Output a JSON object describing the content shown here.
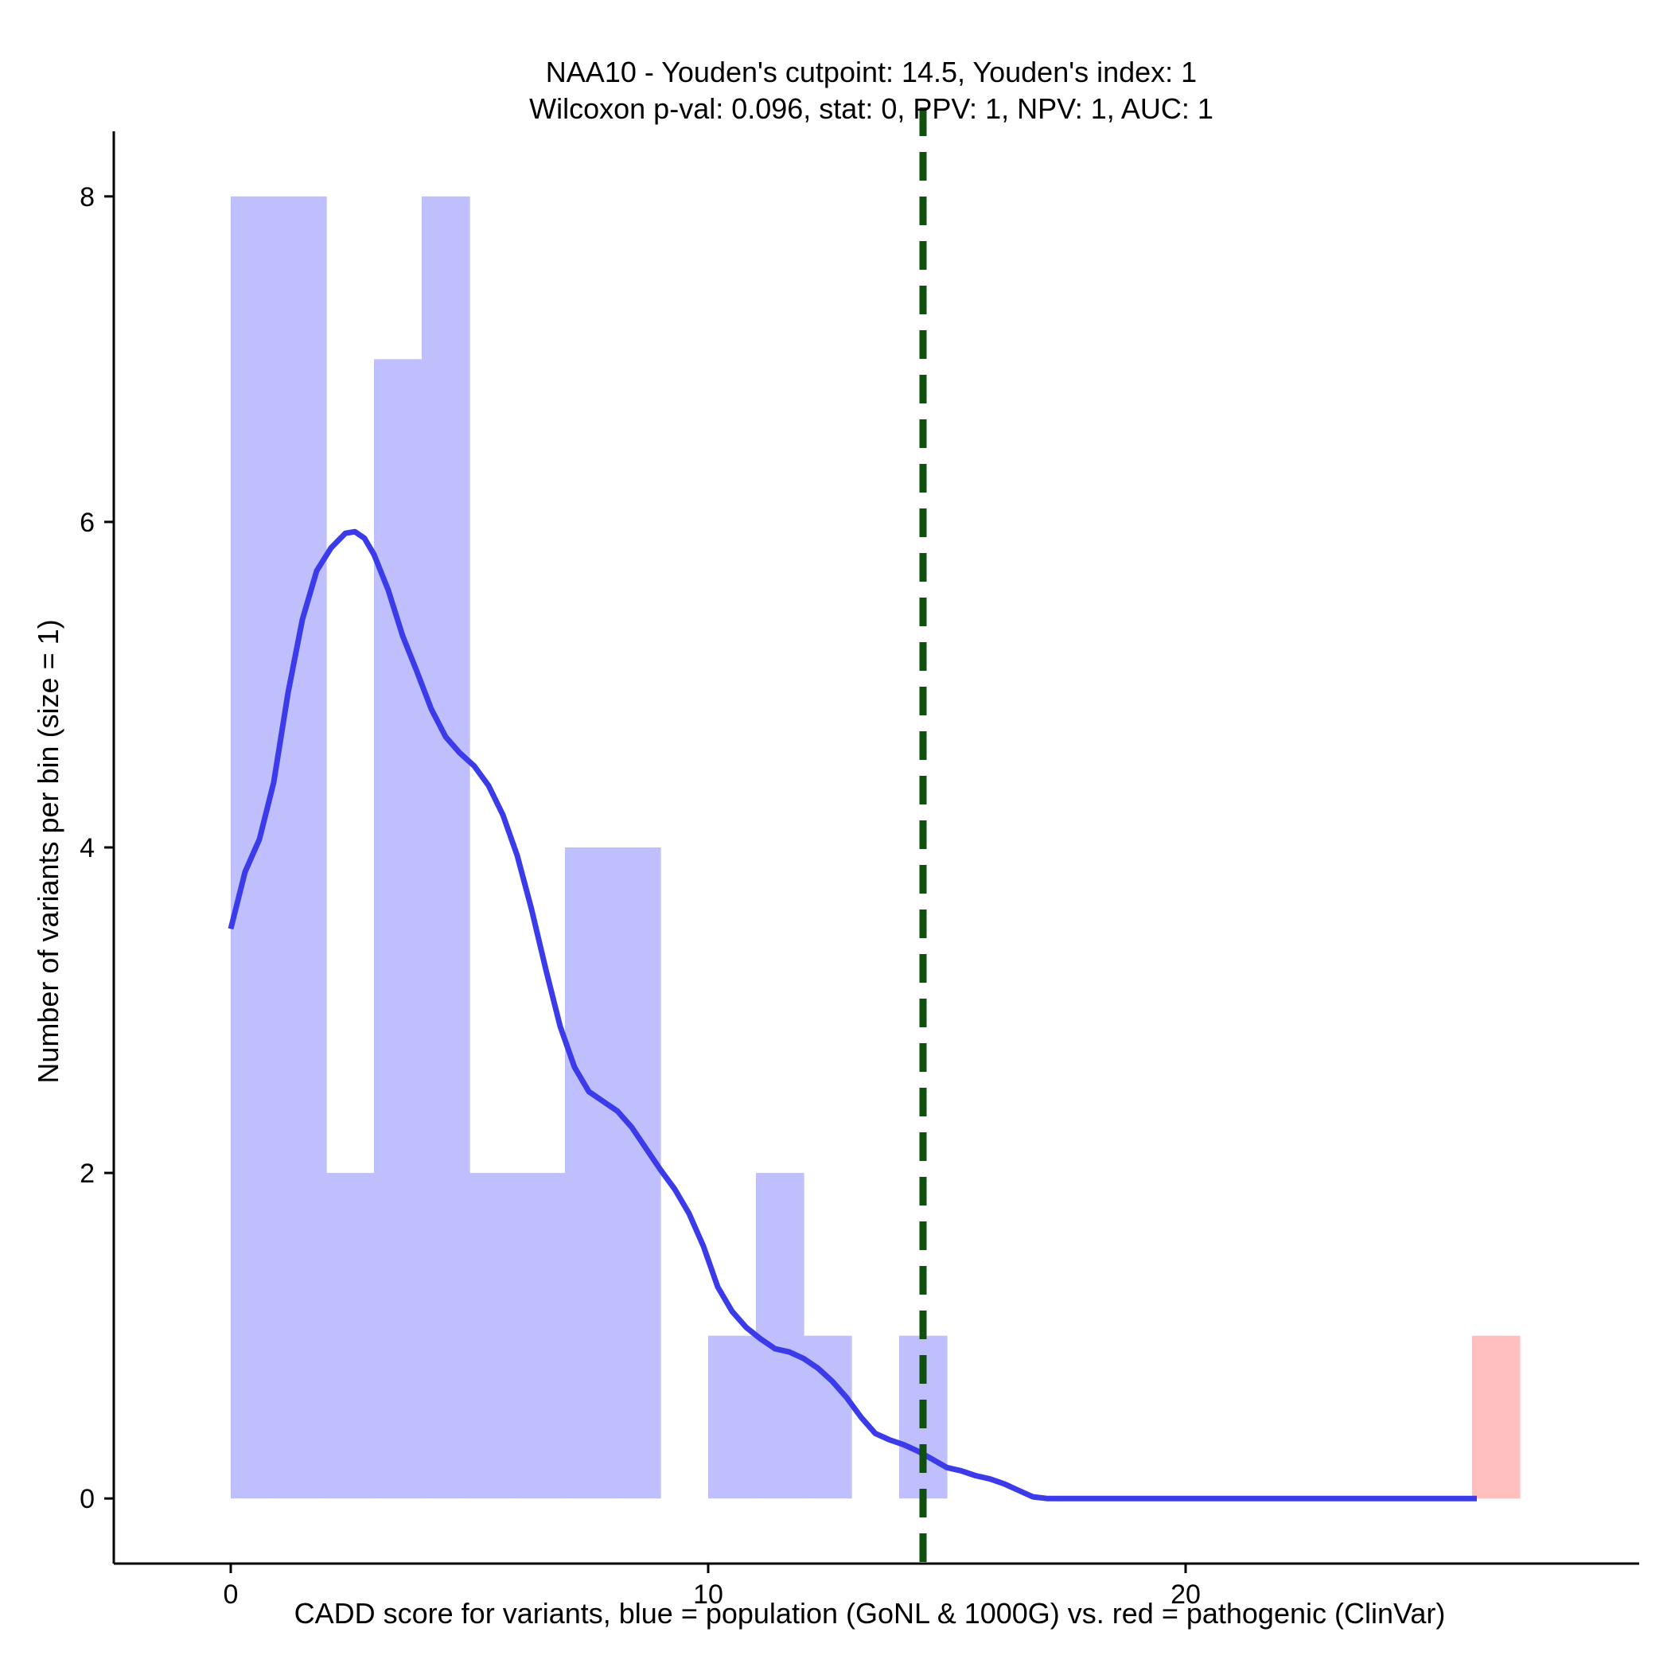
{
  "chart_data": {
    "type": "bar",
    "title_line1": "NAA10 - Youden's cutpoint: 14.5, Youden's index: 1",
    "title_line2": "Wilcoxon p-val: 0.096, stat: 0, PPV: 1, NPV: 1, AUC: 1",
    "xlabel": "CADD score for variants, blue = population (GoNL & 1000G) vs. red = pathogenic (ClinVar)",
    "ylabel": "Number of variants per bin (size = 1)",
    "xlim": [
      -2.45,
      29.5
    ],
    "ylim": [
      -0.4,
      8.4
    ],
    "x_ticks": [
      0,
      10,
      20
    ],
    "y_ticks": [
      0,
      2,
      4,
      6,
      8
    ],
    "cutpoint": 14.5,
    "colors": {
      "population": "#bfbffd",
      "pathogenic": "#ffbfbf",
      "density": "#3b3bea",
      "cutpoint": "#0f500f"
    },
    "series": [
      {
        "name": "population",
        "bins": [
          {
            "x0": 0,
            "x1": 1,
            "count": 8
          },
          {
            "x0": 1,
            "x1": 2,
            "count": 8
          },
          {
            "x0": 2,
            "x1": 3,
            "count": 2
          },
          {
            "x0": 3,
            "x1": 4,
            "count": 7
          },
          {
            "x0": 4,
            "x1": 5,
            "count": 8
          },
          {
            "x0": 5,
            "x1": 6,
            "count": 2
          },
          {
            "x0": 6,
            "x1": 7,
            "count": 2
          },
          {
            "x0": 7,
            "x1": 8,
            "count": 4
          },
          {
            "x0": 8,
            "x1": 9,
            "count": 4
          },
          {
            "x0": 10,
            "x1": 11,
            "count": 1
          },
          {
            "x0": 11,
            "x1": 12,
            "count": 2
          },
          {
            "x0": 12,
            "x1": 13,
            "count": 1
          },
          {
            "x0": 14,
            "x1": 15,
            "count": 1
          }
        ]
      },
      {
        "name": "pathogenic",
        "bins": [
          {
            "x0": 26,
            "x1": 27,
            "count": 1
          }
        ]
      }
    ],
    "density_curve": {
      "x": [
        0,
        0.3,
        0.6,
        0.9,
        1.2,
        1.5,
        1.8,
        2.1,
        2.4,
        2.6,
        2.8,
        3.0,
        3.3,
        3.6,
        3.9,
        4.2,
        4.5,
        4.8,
        5.1,
        5.4,
        5.7,
        6.0,
        6.3,
        6.6,
        6.9,
        7.2,
        7.5,
        7.8,
        8.1,
        8.4,
        8.7,
        9.0,
        9.3,
        9.6,
        9.9,
        10.2,
        10.5,
        10.8,
        11.1,
        11.4,
        11.7,
        12.0,
        12.3,
        12.6,
        12.9,
        13.2,
        13.5,
        13.8,
        14.1,
        14.4,
        14.7,
        15.0,
        15.3,
        15.6,
        15.9,
        16.2,
        16.5,
        16.8,
        17.1,
        17.4,
        17.7,
        18.0,
        19,
        20,
        21,
        22,
        23,
        24,
        25,
        26.1
      ],
      "y": [
        3.5,
        3.85,
        4.05,
        4.4,
        4.95,
        5.4,
        5.7,
        5.84,
        5.93,
        5.94,
        5.9,
        5.8,
        5.58,
        5.3,
        5.08,
        4.85,
        4.68,
        4.58,
        4.5,
        4.38,
        4.2,
        3.95,
        3.62,
        3.25,
        2.9,
        2.65,
        2.5,
        2.44,
        2.38,
        2.28,
        2.15,
        2.02,
        1.9,
        1.75,
        1.55,
        1.3,
        1.15,
        1.05,
        0.98,
        0.92,
        0.9,
        0.86,
        0.8,
        0.72,
        0.62,
        0.5,
        0.4,
        0.36,
        0.33,
        0.29,
        0.24,
        0.19,
        0.17,
        0.14,
        0.12,
        0.09,
        0.05,
        0.01,
        0,
        0,
        0,
        0,
        0,
        0,
        0,
        0,
        0,
        0,
        0,
        0
      ]
    }
  }
}
